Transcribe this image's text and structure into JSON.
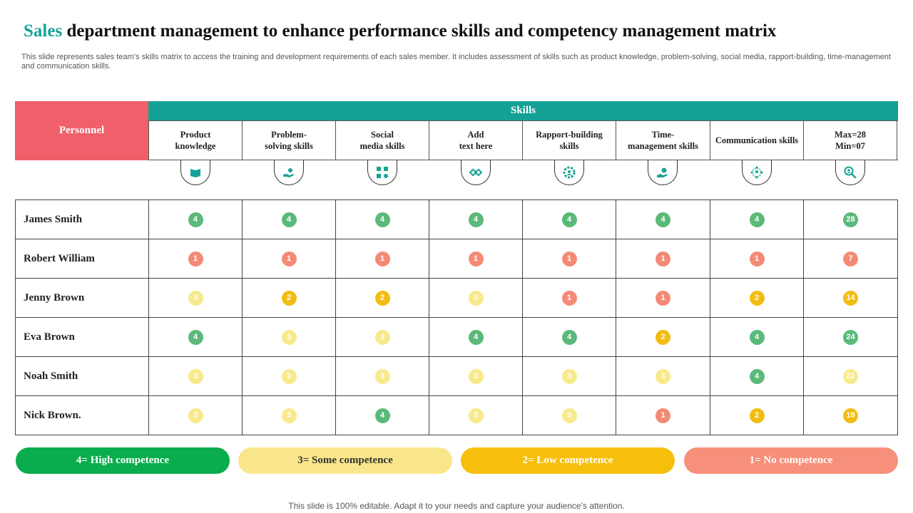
{
  "header": {
    "title_accent": "Sales",
    "title_rest": " department management to enhance performance skills and competency management matrix",
    "subtitle": "This slide represents sales team’s skills matrix to access the training and development requirements of each sales member. It includes assessment of skills such as product knowledge, problem-solving, social media, rapport-building, time-management and communication skills."
  },
  "table": {
    "personnel_label": "Personnel",
    "skills_label": "Skills",
    "columns": [
      {
        "label": "Product\nknowledge",
        "icon": "book-icon"
      },
      {
        "label": "Problem-\nsolving skills",
        "icon": "hand-gear-icon"
      },
      {
        "label": "Social\nmedia  skills",
        "icon": "social-network-icon"
      },
      {
        "label": "Add\ntext here",
        "icon": "handshake-icon"
      },
      {
        "label": "Rapport-building\nskills",
        "icon": "gear-person-icon"
      },
      {
        "label": "Time-\nmanagement  skills",
        "icon": "hand-coin-icon"
      },
      {
        "label": "Communication   skills",
        "icon": "network-people-icon"
      },
      {
        "label": "Max=28\nMin=07",
        "icon": "magnifier-person-icon"
      }
    ],
    "rows": [
      {
        "name": "James Smith",
        "scores": [
          4,
          4,
          4,
          4,
          4,
          4,
          4
        ],
        "total": 28,
        "total_level": 4
      },
      {
        "name": "Robert William",
        "scores": [
          1,
          1,
          1,
          1,
          1,
          1,
          1
        ],
        "total": 7,
        "total_level": 1
      },
      {
        "name": "Jenny Brown",
        "scores": [
          3,
          2,
          2,
          3,
          1,
          1,
          2
        ],
        "total": 14,
        "total_level": 2
      },
      {
        "name": "Eva Brown",
        "scores": [
          4,
          3,
          3,
          4,
          4,
          2,
          4
        ],
        "total": 24,
        "total_level": 4
      },
      {
        "name": "Noah Smith",
        "scores": [
          3,
          3,
          3,
          3,
          3,
          3,
          4
        ],
        "total": 22,
        "total_level": 3
      },
      {
        "name": "Nick Brown.",
        "scores": [
          3,
          3,
          4,
          3,
          3,
          1,
          2
        ],
        "total": 19,
        "total_level": 2
      }
    ]
  },
  "legend": [
    {
      "label": "4= High  competence",
      "bg": "#0aad4e",
      "fg": "#ffffff"
    },
    {
      "label": "3= Some competence",
      "bg": "#fae68a",
      "fg": "#333333"
    },
    {
      "label": "2= Low  competence",
      "bg": "#f6bf0c",
      "fg": "#ffffff"
    },
    {
      "label": "1= No competence",
      "bg": "#f7907a",
      "fg": "#ffffff"
    }
  ],
  "level_colors": {
    "4": {
      "bg": "#5bb97a",
      "fg": "#ffffff"
    },
    "3": {
      "bg": "#f8ea8c",
      "fg": "#ffffff"
    },
    "2": {
      "bg": "#f2bd12",
      "fg": "#ffffff"
    },
    "1": {
      "bg": "#f48a76",
      "fg": "#ffffff"
    }
  },
  "colors": {
    "accent": "#17a398",
    "personnel_bg": "#f0606a",
    "skills_bg": "#14a095",
    "icon_color": "#17a398"
  },
  "footer": "This slide is 100% editable. Adapt it to your needs and capture your audience’s attention."
}
